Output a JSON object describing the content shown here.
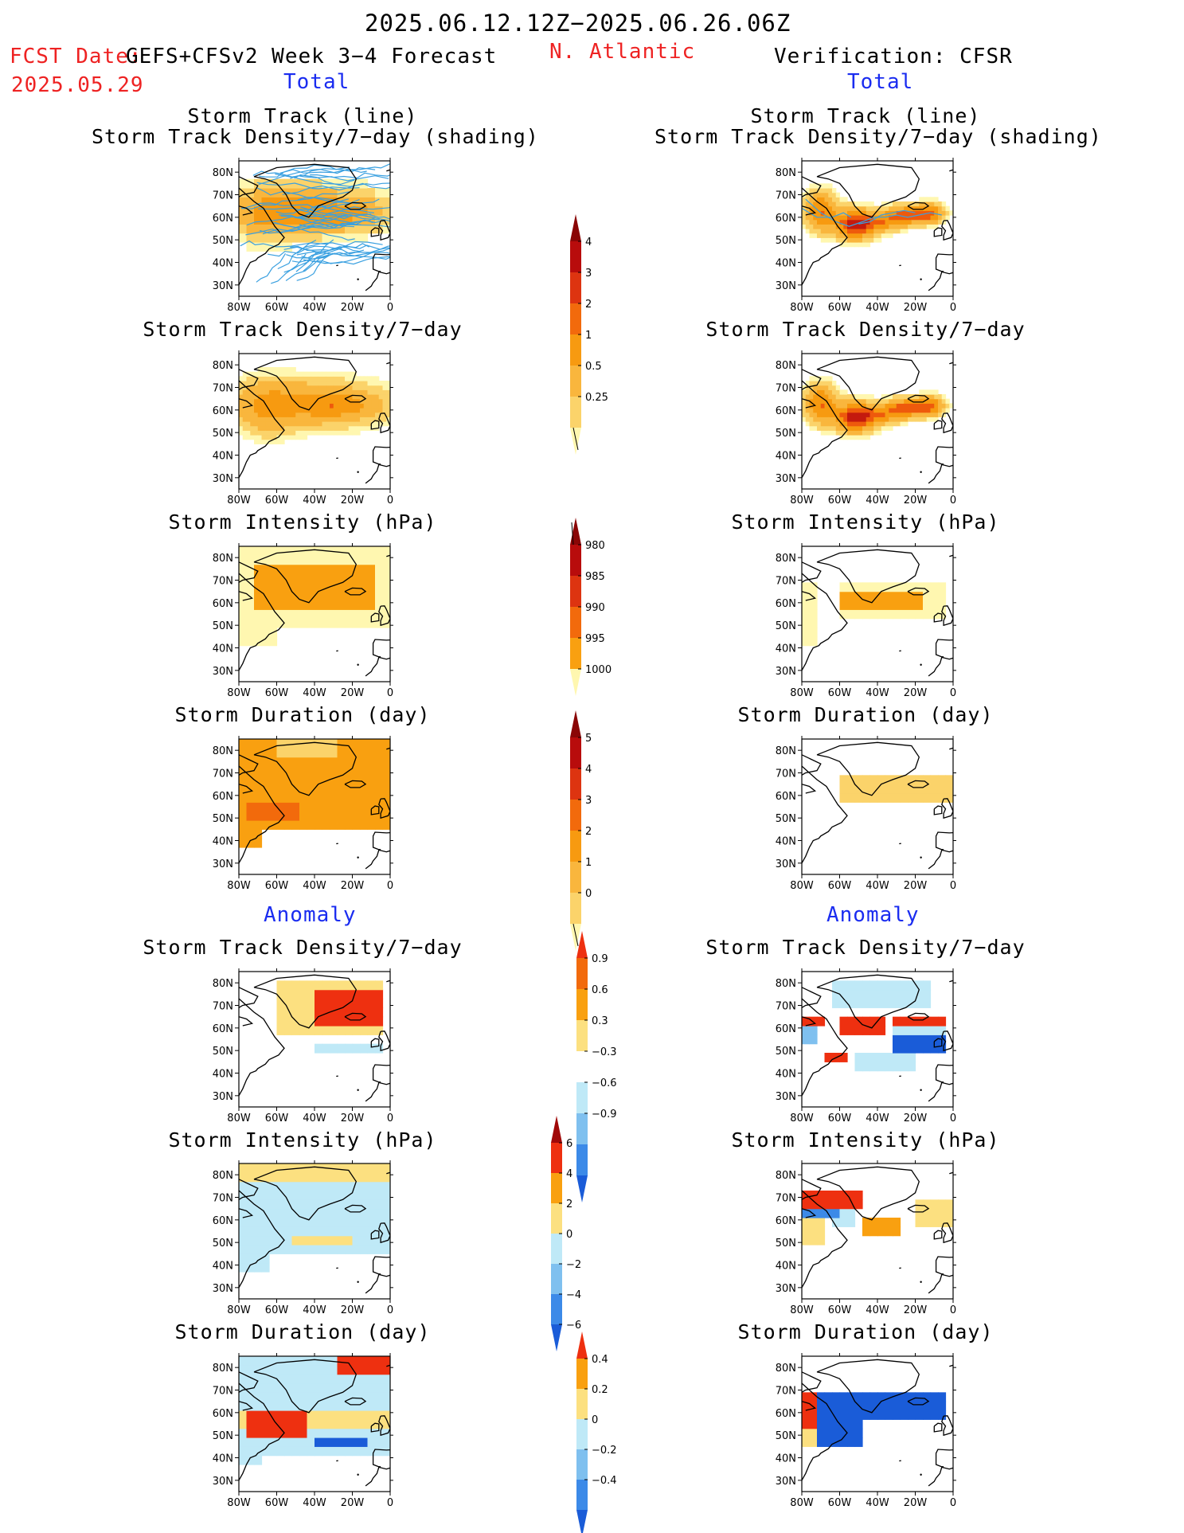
{
  "header": {
    "period": "2025.06.12.12Z−2025.06.26.06Z",
    "fcst_label": "FCST Date:",
    "fcst_date": "2025.05.29",
    "model": "GEFS+CFSv2 Week 3−4 Forecast",
    "region": "N. Atlantic",
    "verification": "Verification: CFSR"
  },
  "sections": {
    "total": "Total",
    "anomaly": "Anomaly"
  },
  "panel_titles": {
    "track_line": "Storm Track (line)",
    "track_shading": "Storm Track Density/7−day (shading)",
    "density": "Storm Track Density/7−day",
    "intensity": "Storm Intensity (hPa)",
    "duration": "Storm Duration (day)"
  },
  "axes": {
    "lon_ticks": [
      "80W",
      "60W",
      "40W",
      "20W",
      "0"
    ],
    "lat_ticks": [
      "80N",
      "70N",
      "60N",
      "50N",
      "40N",
      "30N"
    ]
  },
  "colorbars": {
    "density_total": {
      "labels": [
        "0.25",
        "0.5",
        "1",
        "2",
        "3",
        "4"
      ],
      "colors": [
        "#fff7b0",
        "#fbd36a",
        "#f9b63d",
        "#f79a10",
        "#f26a0c",
        "#dd3410",
        "#b80c0c",
        "#8a0606"
      ]
    },
    "intensity_total": {
      "labels": [
        "1000",
        "995",
        "990",
        "985",
        "980"
      ],
      "colors": [
        "#fff7b0",
        "#f9a010",
        "#f26a0c",
        "#dd3410",
        "#b80c0c",
        "#8a0606"
      ]
    },
    "duration_total": {
      "labels": [
        "0",
        "1",
        "2",
        "3",
        "4",
        "5"
      ],
      "colors": [
        "#fff7b0",
        "#fbd36a",
        "#f9b63d",
        "#f79a10",
        "#f26a0c",
        "#dd3410",
        "#b80c0c",
        "#8a0606"
      ]
    },
    "density_anom": {
      "labels": [
        "0.9",
        "0.6",
        "0.3",
        "−0.3",
        "−0.6",
        "−0.9"
      ],
      "colors": [
        "#ee3010",
        "#f26a0c",
        "#f9a010",
        "#fce080",
        "#ffffff",
        "#bfe9f7",
        "#7fc0ef",
        "#3c8ae8",
        "#1a5cd8"
      ]
    },
    "intensity_anom": {
      "labels": [
        "6",
        "4",
        "2",
        "0",
        "−2",
        "−4",
        "−6"
      ],
      "colors": [
        "#a00808",
        "#ee3010",
        "#f9a010",
        "#fce080",
        "#bfe9f7",
        "#7fc0ef",
        "#3c8ae8",
        "#1a5cd8"
      ]
    },
    "duration_anom": {
      "labels": [
        "0.4",
        "0.2",
        "0",
        "−0.2",
        "−0.4"
      ],
      "colors": [
        "#ee3010",
        "#f9a010",
        "#fce080",
        "#bfe9f7",
        "#7fc0ef",
        "#3c8ae8",
        "#1a5cd8"
      ]
    }
  },
  "colors": {
    "title_red": "#ee2222",
    "title_blue": "#1a2cf0",
    "track_line": "#3aa0e0"
  }
}
